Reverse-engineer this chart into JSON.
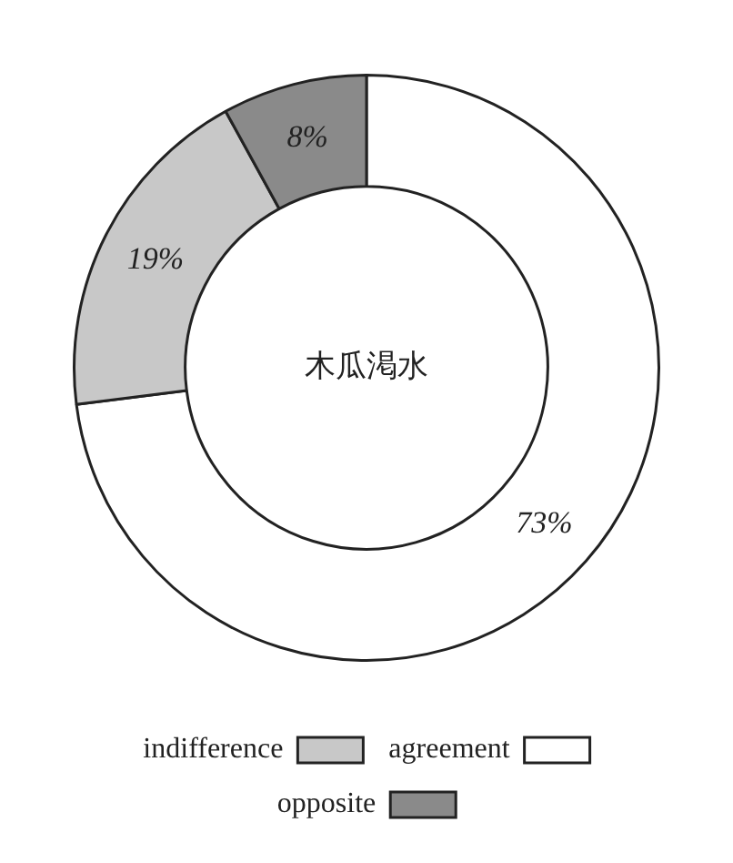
{
  "chart_data": {
    "type": "donut",
    "title": "木瓜渇水",
    "categories": [
      "agreement",
      "indifference",
      "opposite"
    ],
    "values": [
      73,
      19,
      8
    ],
    "colors": [
      "#ffffff",
      "#c8c8c8",
      "#8a8a8a"
    ],
    "value_labels": [
      "73%",
      "19%",
      "8%"
    ],
    "legend": "bottom"
  }
}
